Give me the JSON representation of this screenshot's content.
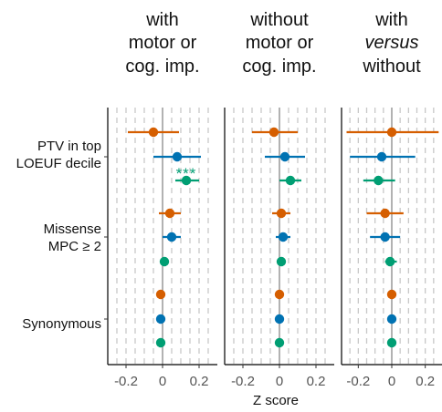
{
  "chart_data": {
    "type": "scatter",
    "subtype": "forest-plot",
    "facets": [
      {
        "title_lines": [
          "with",
          "motor or",
          "cog. imp."
        ],
        "italic_line": -1
      },
      {
        "title_lines": [
          "without",
          "motor or",
          "cog. imp."
        ],
        "italic_line": -1
      },
      {
        "title_lines": [
          "with",
          "versus",
          "without"
        ],
        "italic_line": 1
      }
    ],
    "categories": [
      {
        "lines": [
          "PTV in top",
          "LOEUF decile"
        ]
      },
      {
        "lines": [
          "Missense",
          "MPC ≥ 2"
        ]
      },
      {
        "lines": [
          "Synonymous"
        ]
      }
    ],
    "xlabel": "Z score",
    "xlim": [
      -0.3,
      0.3
    ],
    "xticks": [
      -0.2,
      0,
      0.2
    ],
    "xtick_labels": [
      "-0.2",
      "0",
      "0.2"
    ],
    "gridlines": [
      -0.25,
      -0.2,
      -0.15,
      -0.1,
      -0.05,
      0.05,
      0.1,
      0.15,
      0.2,
      0.25
    ],
    "reference_line": 0,
    "series_colors": [
      "#D55E00",
      "#0072B2",
      "#009E73"
    ],
    "points": [
      [
        [
          {
            "est": -0.05,
            "lo": -0.19,
            "hi": 0.09
          },
          {
            "est": 0.08,
            "lo": -0.05,
            "hi": 0.21
          },
          {
            "est": 0.13,
            "lo": 0.07,
            "hi": 0.2
          }
        ],
        [
          {
            "est": 0.04,
            "lo": -0.02,
            "hi": 0.1
          },
          {
            "est": 0.05,
            "lo": 0.0,
            "hi": 0.1
          },
          {
            "est": 0.01,
            "lo": -0.01,
            "hi": 0.03
          }
        ],
        [
          {
            "est": -0.01,
            "lo": -0.02,
            "hi": 0.0
          },
          {
            "est": -0.01,
            "lo": -0.02,
            "hi": 0.0
          },
          {
            "est": -0.01,
            "lo": -0.02,
            "hi": 0.0
          }
        ]
      ],
      [
        [
          {
            "est": -0.03,
            "lo": -0.15,
            "hi": 0.1
          },
          {
            "est": 0.03,
            "lo": -0.08,
            "hi": 0.14
          },
          {
            "est": 0.06,
            "lo": 0.0,
            "hi": 0.12
          }
        ],
        [
          {
            "est": 0.01,
            "lo": -0.04,
            "hi": 0.06
          },
          {
            "est": 0.02,
            "lo": -0.02,
            "hi": 0.06
          },
          {
            "est": 0.01,
            "lo": 0.0,
            "hi": 0.02
          }
        ],
        [
          {
            "est": 0.0,
            "lo": -0.01,
            "hi": 0.01
          },
          {
            "est": 0.0,
            "lo": -0.01,
            "hi": 0.01
          },
          {
            "est": 0.0,
            "lo": -0.01,
            "hi": 0.01
          }
        ]
      ],
      [
        [
          {
            "est": 0.0,
            "lo": -0.27,
            "hi": 0.28
          },
          {
            "est": -0.06,
            "lo": -0.25,
            "hi": 0.14
          },
          {
            "est": -0.08,
            "lo": -0.17,
            "hi": 0.02
          }
        ],
        [
          {
            "est": -0.04,
            "lo": -0.15,
            "hi": 0.07
          },
          {
            "est": -0.04,
            "lo": -0.13,
            "hi": 0.05
          },
          {
            "est": -0.01,
            "lo": -0.04,
            "hi": 0.03
          }
        ],
        [
          {
            "est": 0.0,
            "lo": -0.01,
            "hi": 0.01
          },
          {
            "est": 0.0,
            "lo": -0.01,
            "hi": 0.01
          },
          {
            "est": 0.0,
            "lo": -0.01,
            "hi": 0.01
          }
        ]
      ]
    ],
    "annotations": [
      {
        "text": "***",
        "facet": 0,
        "category": 0,
        "series": 2,
        "color": "#009E73"
      }
    ]
  }
}
